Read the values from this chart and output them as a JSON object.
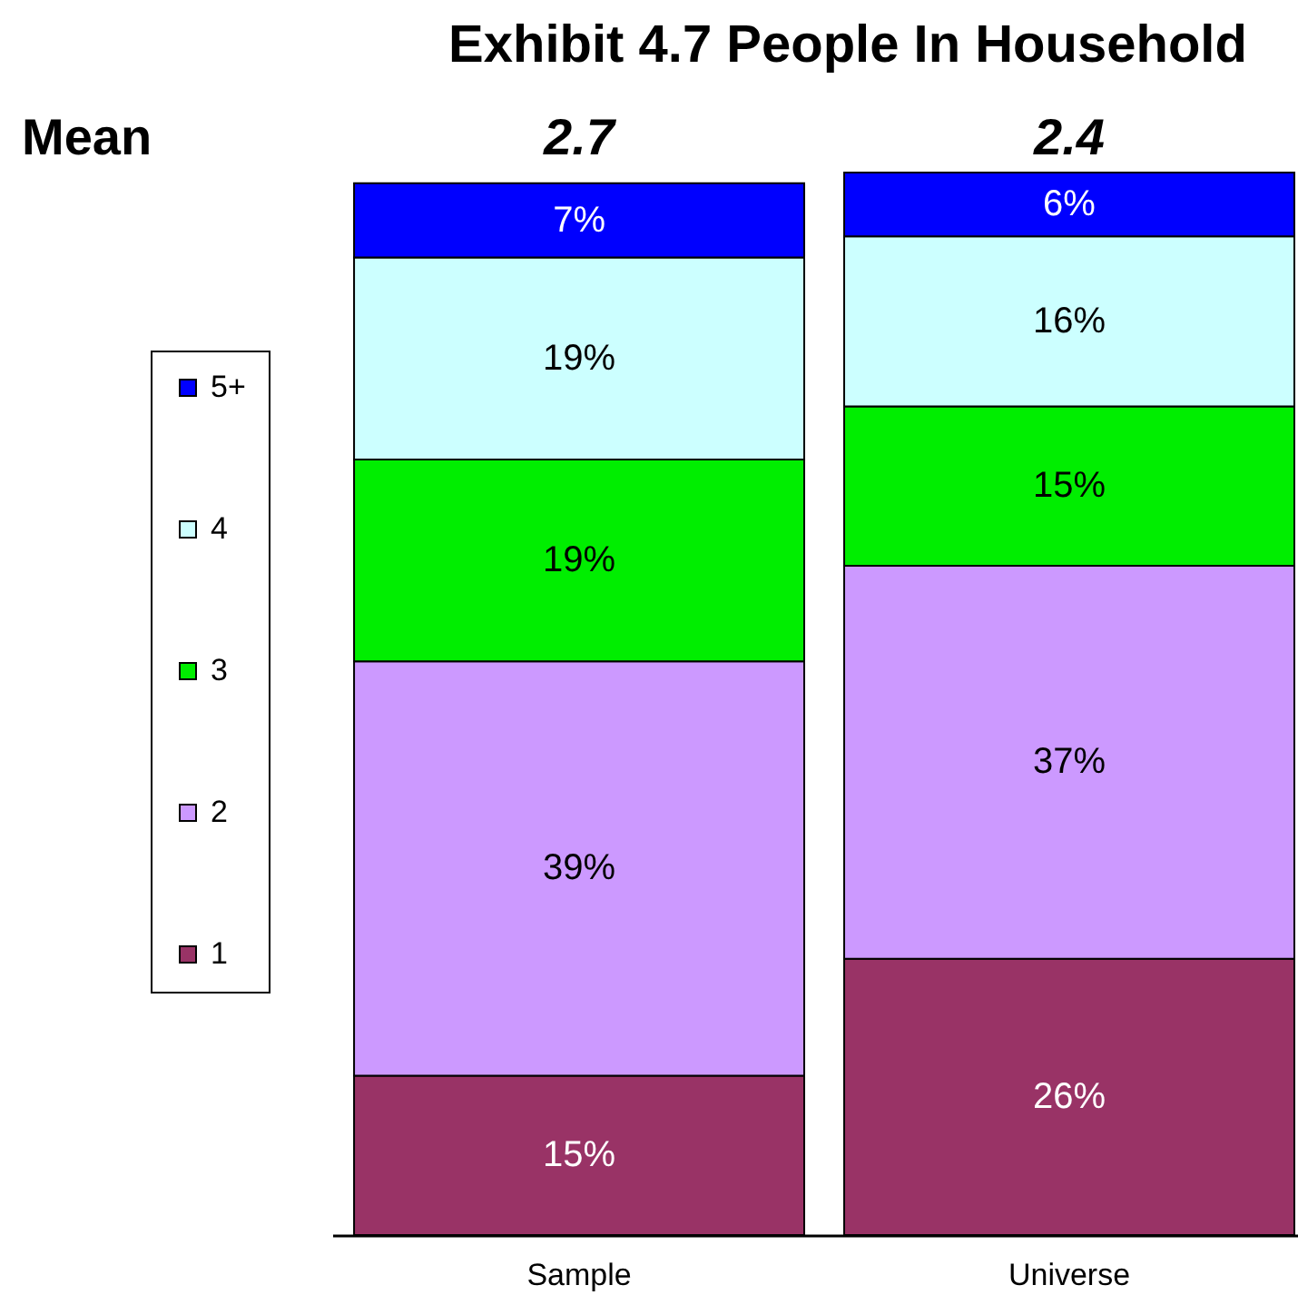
{
  "chart_data": {
    "type": "bar",
    "title": "Exhibit 4.7 People In Household",
    "categories": [
      "Sample",
      "Universe"
    ],
    "stacked": true,
    "ylim": [
      0,
      100
    ],
    "tick_labels": "x",
    "legend": "left",
    "series": [
      {
        "name": "1",
        "color": "#993366",
        "values": [
          15,
          26
        ],
        "value_labels": [
          "15%",
          "26%"
        ]
      },
      {
        "name": "2",
        "color": "#cc99ff",
        "values": [
          39,
          37
        ],
        "value_labels": [
          "39%",
          "37%"
        ]
      },
      {
        "name": "3",
        "color": "#00ee00",
        "values": [
          19,
          15
        ],
        "value_labels": [
          "19%",
          "15%"
        ]
      },
      {
        "name": "4",
        "color": "#ccffff",
        "values": [
          19,
          16
        ],
        "value_labels": [
          "19%",
          "16%"
        ]
      },
      {
        "name": "5+",
        "color": "#0000ff",
        "values": [
          7,
          6
        ],
        "value_labels": [
          "7%",
          "6%"
        ]
      }
    ],
    "annotations": [
      "Mean",
      "2.7",
      "2.4"
    ]
  }
}
